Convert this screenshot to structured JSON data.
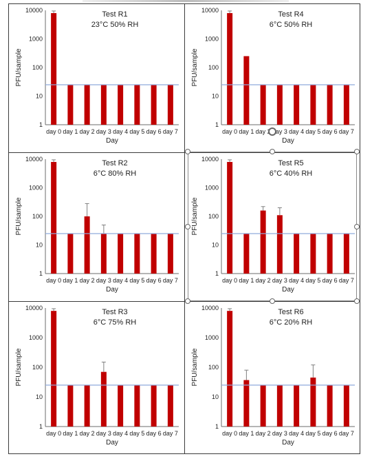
{
  "colors": {
    "bar": "#c00000",
    "threshold": "#8faadc",
    "axis": "#6b6b6b",
    "error": "#7f7f7f"
  },
  "chart_data": [
    {
      "type": "bar",
      "title": "Test R1",
      "subtitle": "23°C 50% RH",
      "categories": [
        "day 0",
        "day 1",
        "day 2",
        "day 3",
        "day 4",
        "day 5",
        "day 6",
        "day 7"
      ],
      "values": [
        8000,
        25,
        25,
        25,
        25,
        25,
        25,
        25
      ],
      "error_upper": [
        9500,
        null,
        null,
        null,
        null,
        null,
        null,
        null
      ],
      "threshold": 25,
      "xlabel": "Day",
      "ylabel": "PFU/sample",
      "yscale": "log",
      "ylim": [
        1,
        10000
      ],
      "yticks": [
        "1",
        "10",
        "100",
        "1000",
        "10000"
      ]
    },
    {
      "type": "bar",
      "title": "Test R4",
      "subtitle": "6°C 50% RH",
      "categories": [
        "day 0",
        "day 1",
        "day 2",
        "day 3",
        "day 4",
        "day 5",
        "day 6",
        "day 7"
      ],
      "values": [
        8000,
        250,
        25,
        25,
        25,
        25,
        25,
        25
      ],
      "error_upper": [
        9500,
        null,
        null,
        null,
        null,
        null,
        null,
        null
      ],
      "threshold": 25,
      "xlabel": "Day",
      "ylabel": "PFU/sample",
      "yscale": "log",
      "ylim": [
        1,
        10000
      ],
      "yticks": [
        "1",
        "10",
        "100",
        "1000",
        "10000"
      ]
    },
    {
      "type": "bar",
      "title": "Test R2",
      "subtitle": "6°C 80% RH",
      "categories": [
        "day 0",
        "day 1",
        "day 2",
        "day 3",
        "day 4",
        "day 5",
        "day 6",
        "day 7"
      ],
      "values": [
        8000,
        25,
        100,
        25,
        25,
        25,
        25,
        25
      ],
      "error_upper": [
        9500,
        null,
        280,
        50,
        null,
        null,
        null,
        null
      ],
      "threshold": 25,
      "xlabel": "Day",
      "ylabel": "PFU/sample",
      "yscale": "log",
      "ylim": [
        1,
        10000
      ],
      "yticks": [
        "1",
        "10",
        "100",
        "1000",
        "10000"
      ]
    },
    {
      "type": "bar",
      "title": "Test R5",
      "subtitle": "6°C 40% RH",
      "categories": [
        "day 0",
        "day 1",
        "day 2",
        "day 3",
        "day 4",
        "day 5",
        "day 6",
        "day 7"
      ],
      "values": [
        8000,
        25,
        160,
        110,
        25,
        25,
        25,
        25
      ],
      "error_upper": [
        9500,
        null,
        220,
        200,
        null,
        null,
        null,
        null
      ],
      "threshold": 25,
      "xlabel": "Day",
      "ylabel": "PFU/sample",
      "yscale": "log",
      "ylim": [
        1,
        10000
      ],
      "yticks": [
        "1",
        "10",
        "100",
        "1000",
        "10000"
      ]
    },
    {
      "type": "bar",
      "title": "Test R3",
      "subtitle": "6°C 75% RH",
      "categories": [
        "day 0",
        "day 1",
        "day 2",
        "day 3",
        "day 4",
        "day 5",
        "day 6",
        "day 7"
      ],
      "values": [
        8000,
        25,
        25,
        70,
        25,
        25,
        25,
        25
      ],
      "error_upper": [
        9500,
        null,
        null,
        150,
        null,
        null,
        null,
        null
      ],
      "threshold": 25,
      "xlabel": "Day",
      "ylabel": "PFU/sample",
      "yscale": "log",
      "ylim": [
        1,
        10000
      ],
      "yticks": [
        "1",
        "10",
        "100",
        "1000",
        "10000"
      ]
    },
    {
      "type": "bar",
      "title": "Test R6",
      "subtitle": "6°C 20% RH",
      "categories": [
        "day 0",
        "day 1",
        "day 2",
        "day 3",
        "day 4",
        "day 5",
        "day 6",
        "day 7"
      ],
      "values": [
        8000,
        37,
        25,
        25,
        25,
        45,
        25,
        25
      ],
      "error_upper": [
        9500,
        80,
        null,
        null,
        null,
        120,
        null,
        null
      ],
      "threshold": 25,
      "xlabel": "Day",
      "ylabel": "PFU/sample",
      "yscale": "log",
      "ylim": [
        1,
        10000
      ],
      "yticks": [
        "1",
        "10",
        "100",
        "1000",
        "10000"
      ]
    }
  ]
}
